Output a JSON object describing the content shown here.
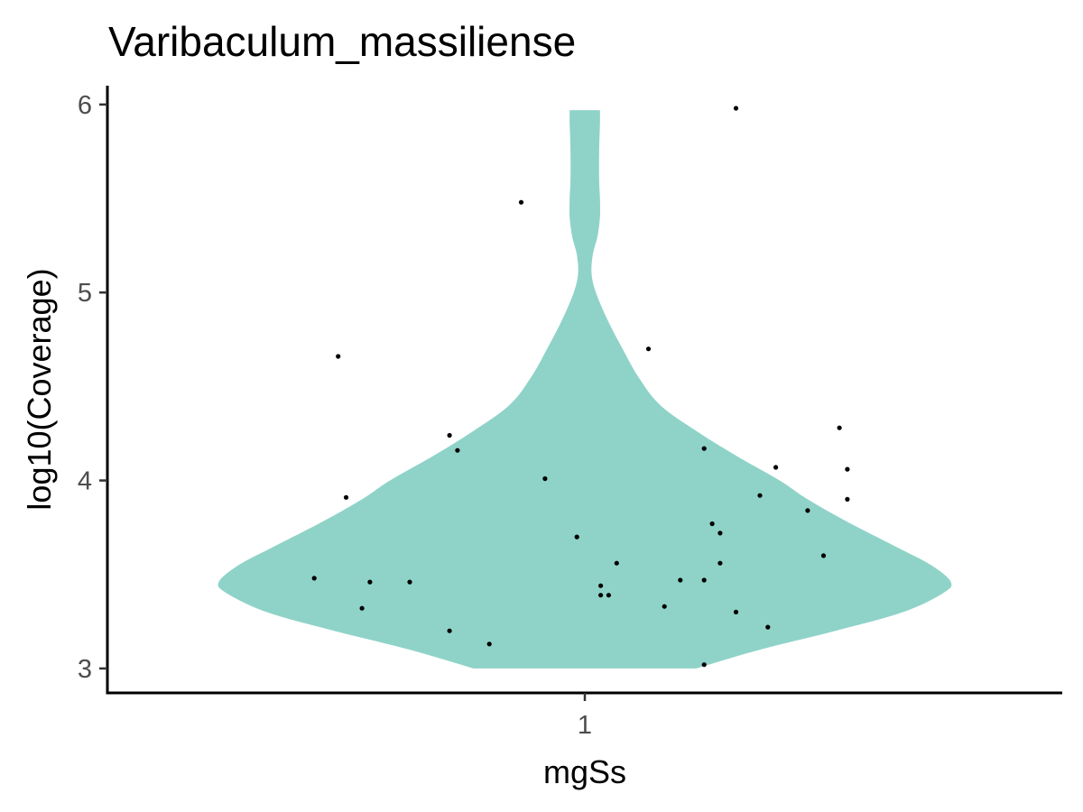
{
  "chart_data": {
    "type": "violin",
    "title": "Varibaculum_massiliense",
    "xlabel": "mgSs",
    "ylabel": "log10(Coverage)",
    "categories": [
      "1"
    ],
    "ylim": [
      2.87,
      6.1
    ],
    "yticks": [
      3,
      4,
      5,
      6
    ],
    "grid": false,
    "legend": "none",
    "violin_color": "#8fd3c8",
    "point_color": "#000000",
    "violin_density": [
      {
        "y": 3.0,
        "w": 0.28
      },
      {
        "y": 3.1,
        "w": 0.44
      },
      {
        "y": 3.2,
        "w": 0.63
      },
      {
        "y": 3.3,
        "w": 0.8
      },
      {
        "y": 3.4,
        "w": 0.9
      },
      {
        "y": 3.46,
        "w": 0.92
      },
      {
        "y": 3.55,
        "w": 0.87
      },
      {
        "y": 3.65,
        "w": 0.78
      },
      {
        "y": 3.78,
        "w": 0.66
      },
      {
        "y": 3.9,
        "w": 0.56
      },
      {
        "y": 4.0,
        "w": 0.49
      },
      {
        "y": 4.12,
        "w": 0.39
      },
      {
        "y": 4.25,
        "w": 0.29
      },
      {
        "y": 4.4,
        "w": 0.19
      },
      {
        "y": 4.55,
        "w": 0.135
      },
      {
        "y": 4.7,
        "w": 0.095
      },
      {
        "y": 4.85,
        "w": 0.058
      },
      {
        "y": 5.0,
        "w": 0.028
      },
      {
        "y": 5.1,
        "w": 0.017
      },
      {
        "y": 5.2,
        "w": 0.02
      },
      {
        "y": 5.3,
        "w": 0.032
      },
      {
        "y": 5.4,
        "w": 0.038
      },
      {
        "y": 5.5,
        "w": 0.038
      },
      {
        "y": 5.6,
        "w": 0.036
      },
      {
        "y": 5.75,
        "w": 0.036
      },
      {
        "y": 5.9,
        "w": 0.038
      },
      {
        "y": 5.97,
        "w": 0.038
      }
    ],
    "points": [
      {
        "x": 1.19,
        "y": 5.98
      },
      {
        "x": 0.92,
        "y": 5.48
      },
      {
        "x": 1.08,
        "y": 4.7
      },
      {
        "x": 0.69,
        "y": 4.66
      },
      {
        "x": 1.32,
        "y": 4.28
      },
      {
        "x": 0.83,
        "y": 4.24
      },
      {
        "x": 1.15,
        "y": 4.17
      },
      {
        "x": 0.84,
        "y": 4.16
      },
      {
        "x": 1.24,
        "y": 4.07
      },
      {
        "x": 1.33,
        "y": 4.06
      },
      {
        "x": 0.95,
        "y": 4.01
      },
      {
        "x": 0.7,
        "y": 3.91
      },
      {
        "x": 1.22,
        "y": 3.92
      },
      {
        "x": 1.33,
        "y": 3.9
      },
      {
        "x": 1.28,
        "y": 3.84
      },
      {
        "x": 1.16,
        "y": 3.77
      },
      {
        "x": 1.17,
        "y": 3.72
      },
      {
        "x": 0.99,
        "y": 3.7
      },
      {
        "x": 1.3,
        "y": 3.6
      },
      {
        "x": 1.04,
        "y": 3.56
      },
      {
        "x": 1.17,
        "y": 3.56
      },
      {
        "x": 0.66,
        "y": 3.48
      },
      {
        "x": 1.12,
        "y": 3.47
      },
      {
        "x": 1.15,
        "y": 3.47
      },
      {
        "x": 0.73,
        "y": 3.46
      },
      {
        "x": 0.78,
        "y": 3.46
      },
      {
        "x": 1.02,
        "y": 3.44
      },
      {
        "x": 1.02,
        "y": 3.39
      },
      {
        "x": 1.03,
        "y": 3.39
      },
      {
        "x": 1.1,
        "y": 3.33
      },
      {
        "x": 0.72,
        "y": 3.32
      },
      {
        "x": 1.19,
        "y": 3.3
      },
      {
        "x": 1.23,
        "y": 3.22
      },
      {
        "x": 0.83,
        "y": 3.2
      },
      {
        "x": 0.88,
        "y": 3.13
      },
      {
        "x": 1.15,
        "y": 3.02
      }
    ]
  }
}
